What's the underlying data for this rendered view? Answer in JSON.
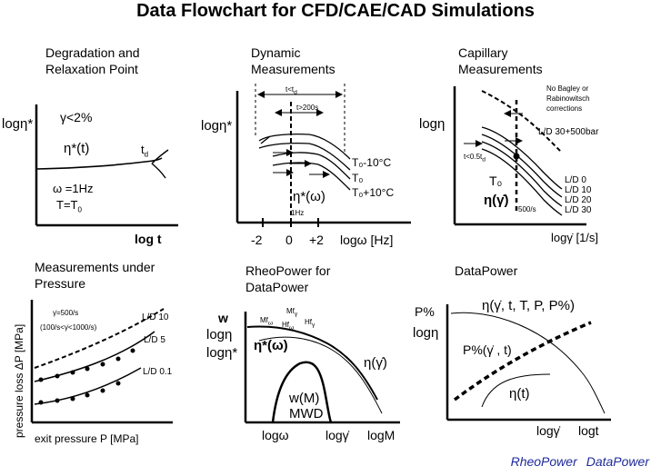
{
  "title": "Data Flowchart for CFD/CAE/CAD Simulations",
  "panels": {
    "degradation": {
      "title": [
        "Degradation and",
        "Relaxation Point"
      ],
      "ylabel": "logη*",
      "condition": "γ<2%",
      "curve_label": "η*(t)",
      "td": "t",
      "td_sub": "d",
      "omega": "ω =1Hz",
      "temp": "T=T",
      "temp_sub": "0",
      "xlabel": "log t"
    },
    "dynamic": {
      "title": [
        "Dynamic",
        "Measurements"
      ],
      "ylabel": "logη*",
      "t1": "t<t",
      "t1_sub": "d",
      "t2": "t>200s",
      "temps": [
        "T₀-10°C",
        "T₀",
        "T₀+10°C"
      ],
      "curve_label": "η*(ω)",
      "hz": "1Hz",
      "ticks": [
        "-2",
        "0",
        "+2"
      ],
      "xlabel": "logω [Hz]"
    },
    "capillary": {
      "title": [
        "Capillary",
        "Measurements"
      ],
      "ylabel": "logη",
      "note": [
        "No Bagley or",
        "Rabinowitsch",
        "corrections"
      ],
      "ld_top": "L/D 30+500bar",
      "t_label": "t<0.5t",
      "t_label_sub": "d",
      "T0": "T₀",
      "curve_label": "η(γ̇)",
      "rate": "500/s",
      "ld": [
        "L/D 0",
        "L/D 10",
        "L/D 20",
        "L/D 30"
      ],
      "xlabel": "logγ̇  [1/s]"
    },
    "pressure": {
      "title": [
        "Measurements under",
        "Pressure"
      ],
      "ylabel": "pressure loss ΔP [MPa]",
      "note1": "γ̇=500/s",
      "note2": "(100/s<γ̇<1000/s)",
      "ld": [
        "L/D 10",
        "L/D 5",
        "L/D 0.1"
      ],
      "xlabel": "exit pressure P [MPa]"
    },
    "rheopower": {
      "title": [
        "RheoPower for",
        "DataPower"
      ],
      "ylabels": [
        "w",
        "logη",
        "logη*"
      ],
      "mf": [
        "Mf",
        "Mf",
        "Hf",
        "Hf"
      ],
      "mf_subs": [
        "ω",
        "γ",
        "ω",
        "γ"
      ],
      "eta_star": "η*(ω)",
      "eta": "η(γ̇)",
      "mwd": [
        "w(M)",
        "MWD"
      ],
      "xlabels": [
        "logω",
        "logγ̇",
        "logM"
      ]
    },
    "datapower": {
      "title": "DataPower",
      "ylabels": [
        "P%",
        "logη"
      ],
      "eta_full": "η(γ̇, t, T, P, P%)",
      "pp": "P%(γ̇ , t)",
      "eta_t": "η(t)",
      "xlabels": [
        "logγ̇",
        "logt"
      ]
    }
  },
  "footer": [
    "RheoPower",
    "DataPower"
  ],
  "colors": {
    "footer": "#1f2a9a",
    "ink": "#000000"
  }
}
